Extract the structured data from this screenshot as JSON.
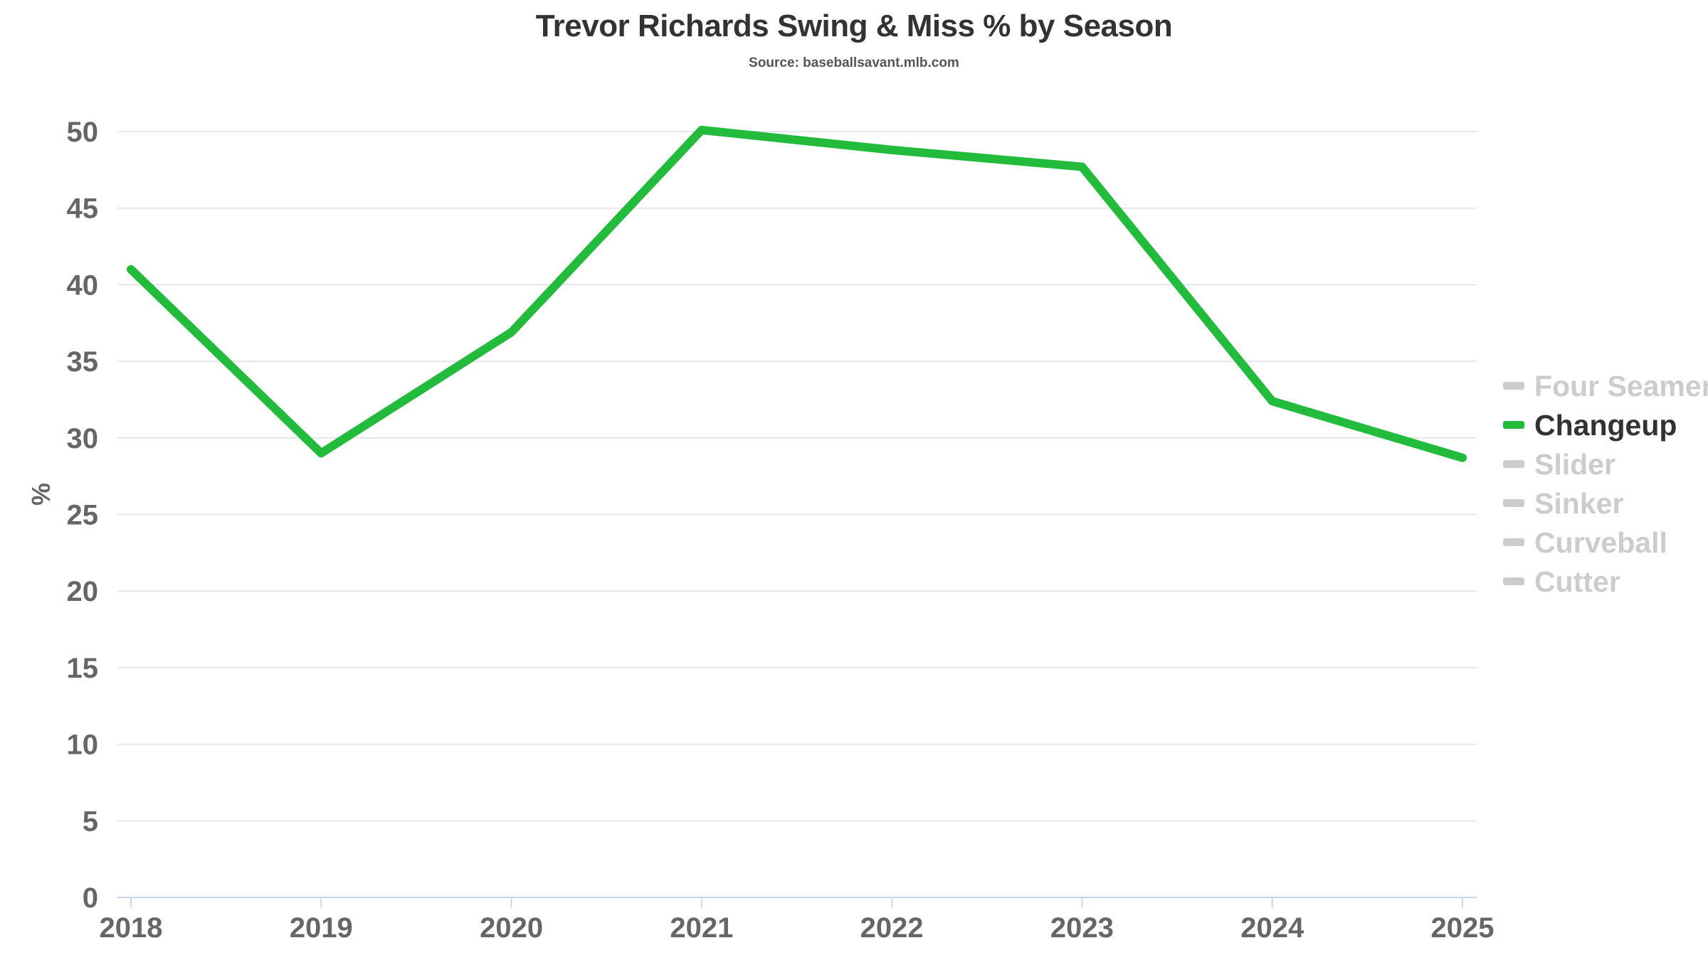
{
  "chart_data": {
    "type": "line",
    "title": "Trevor Richards Swing & Miss % by Season",
    "subtitle": "Source: baseballsavant.mlb.com",
    "xlabel": "",
    "ylabel": "%",
    "x": [
      "2018",
      "2019",
      "2020",
      "2021",
      "2022",
      "2023",
      "2024",
      "2025"
    ],
    "ylim": [
      0,
      50
    ],
    "yticks": [
      0,
      5,
      10,
      15,
      20,
      25,
      30,
      35,
      40,
      45,
      50
    ],
    "grid": true,
    "legend_position": "right",
    "series": [
      {
        "name": "Changeup",
        "values": [
          41.0,
          29.0,
          36.9,
          50.1,
          48.8,
          47.7,
          32.4,
          28.7
        ],
        "color": "#22bb3c",
        "active": true
      }
    ],
    "legend": [
      {
        "label": "Four Seamer",
        "active": false
      },
      {
        "label": "Changeup",
        "active": true
      },
      {
        "label": "Slider",
        "active": false
      },
      {
        "label": "Sinker",
        "active": false
      },
      {
        "label": "Curveball",
        "active": false
      },
      {
        "label": "Cutter",
        "active": false
      }
    ],
    "colors": {
      "active_line": "#22bb3c",
      "inactive_legend": "#cccccc",
      "active_legend_text": "#333333",
      "grid": "#e6e6e6",
      "axis": "#ccd6eb"
    }
  }
}
